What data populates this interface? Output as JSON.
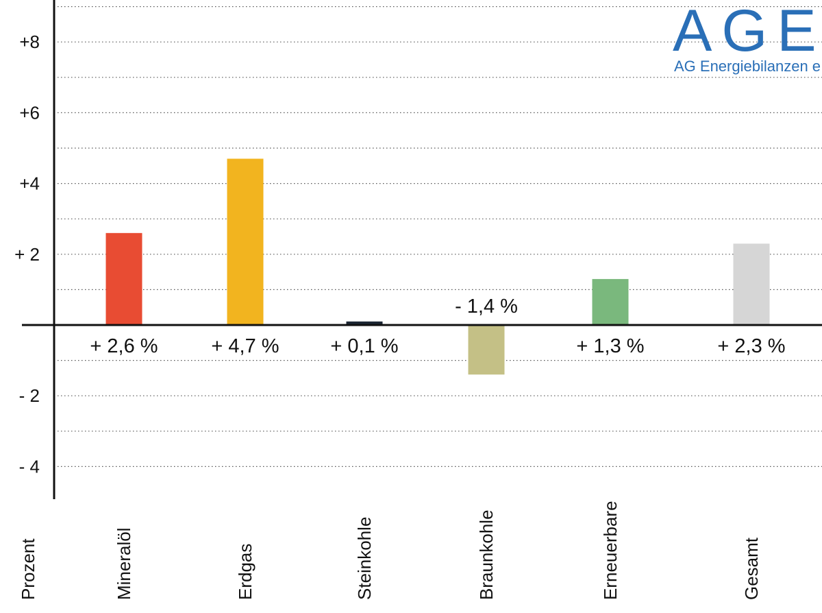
{
  "chart_data": {
    "type": "bar",
    "categories": [
      "Mineralöl",
      "Erdgas",
      "Steinkohle",
      "Braunkohle",
      "Erneuerbare",
      "Gesamt"
    ],
    "values": [
      2.6,
      4.7,
      0.1,
      -1.4,
      1.3,
      2.3
    ],
    "data_labels": [
      "+ 2,6 %",
      "+ 4,7 %",
      "+ 0,1 %",
      "- 1,4 %",
      "+ 1,3 %",
      "+ 2,3 %"
    ],
    "colors": [
      "#e84c33",
      "#f2b41f",
      "#1b2633",
      "#c4c086",
      "#7ab87d",
      "#d6d6d6"
    ],
    "ylabel": "Prozent",
    "ylim": [
      -4.8,
      9
    ],
    "yticks": [
      8,
      6,
      4,
      2,
      -2,
      -4
    ],
    "ytick_labels": [
      "+8",
      "+6",
      "+4",
      "+ 2",
      "- 2",
      "- 4"
    ],
    "grid": true,
    "gridline_step": 1
  },
  "logo": {
    "main": "AGEB",
    "sub": "AG Energiebilanzen e.V."
  }
}
